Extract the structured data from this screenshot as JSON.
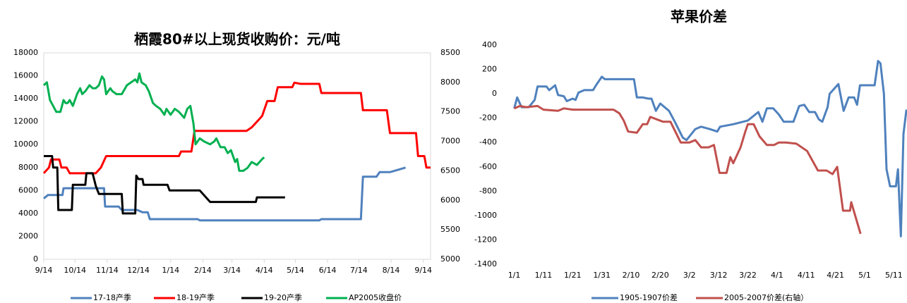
{
  "chart_data": [
    {
      "type": "line",
      "title": "栖霞80#以上现货收购价：元/吨",
      "xlim": [
        0,
        372
      ],
      "xticks": [
        {
          "value": 0,
          "label": "9/14"
        },
        {
          "value": 30,
          "label": "10/14"
        },
        {
          "value": 61,
          "label": "11/14"
        },
        {
          "value": 91,
          "label": "12/14"
        },
        {
          "value": 122,
          "label": "1/14"
        },
        {
          "value": 153,
          "label": "2/14"
        },
        {
          "value": 181,
          "label": "3/14"
        },
        {
          "value": 212,
          "label": "4/14"
        },
        {
          "value": 242,
          "label": "5/14"
        },
        {
          "value": 273,
          "label": "6/14"
        },
        {
          "value": 303,
          "label": "7/14"
        },
        {
          "value": 334,
          "label": "8/14"
        },
        {
          "value": 365,
          "label": "9/14"
        }
      ],
      "ylim": [
        0,
        18000
      ],
      "yticks": [
        0,
        2000,
        4000,
        6000,
        8000,
        10000,
        12000,
        14000,
        16000,
        18000
      ],
      "y2lim": [
        5000,
        8500
      ],
      "y2ticks": [
        5000,
        5500,
        6000,
        6500,
        7000,
        7500,
        8000,
        8500
      ],
      "grid": false,
      "series": [
        {
          "name": "17-18产季",
          "color": "#4f81bd",
          "axis": "y",
          "x": [
            0,
            4,
            18,
            19,
            58,
            59,
            72,
            75,
            90,
            95,
            100,
            102,
            148,
            150,
            265,
            267,
            305,
            307,
            320,
            323,
            333,
            348
          ],
          "values": [
            5300,
            5600,
            5600,
            6200,
            6200,
            4600,
            4600,
            4300,
            4300,
            4100,
            4100,
            3500,
            3500,
            3400,
            3400,
            3500,
            3500,
            7200,
            7200,
            7600,
            7600,
            8000
          ]
        },
        {
          "name": "18-19产季",
          "color": "#ff0000",
          "axis": "y",
          "x": [
            0,
            5,
            7,
            15,
            17,
            22,
            25,
            50,
            55,
            60,
            130,
            132,
            142,
            145,
            195,
            200,
            205,
            210,
            215,
            222,
            225,
            239,
            241,
            247,
            265,
            267,
            305,
            307,
            330,
            333,
            358,
            360,
            366,
            368,
            372
          ],
          "values": [
            7500,
            8000,
            8700,
            8700,
            8000,
            8000,
            7500,
            7500,
            8000,
            9000,
            9000,
            9400,
            9400,
            11200,
            11200,
            11500,
            12000,
            12500,
            13800,
            13800,
            15000,
            15000,
            15400,
            15300,
            15300,
            14500,
            14500,
            13000,
            13000,
            11000,
            11000,
            9000,
            9000,
            8000,
            8000
          ]
        },
        {
          "name": "19-20产季",
          "color": "#000000",
          "axis": "y",
          "x": [
            0,
            8,
            9,
            13,
            14,
            27,
            28,
            40,
            41,
            47,
            50,
            53,
            75,
            76,
            88,
            89,
            91,
            95,
            96,
            119,
            121,
            150,
            160,
            204,
            205,
            232
          ],
          "values": [
            9000,
            9000,
            8000,
            8000,
            4300,
            4300,
            6500,
            6500,
            7500,
            7500,
            6400,
            5700,
            5700,
            4000,
            4000,
            7300,
            7000,
            7000,
            6500,
            6500,
            6000,
            6000,
            5000,
            5000,
            5400,
            5400
          ]
        },
        {
          "name": "AP2005收盘价",
          "color": "#00b050",
          "axis": "y2",
          "x": [
            0,
            3,
            6,
            9,
            12,
            16,
            19,
            21,
            23,
            25,
            28,
            30,
            32,
            35,
            37,
            40,
            44,
            47,
            50,
            53,
            56,
            58,
            60,
            62,
            64,
            66,
            70,
            75,
            80,
            84,
            88,
            90,
            92,
            94,
            98,
            101,
            105,
            108,
            112,
            116,
            118,
            122,
            126,
            130,
            135,
            138,
            141,
            144,
            146,
            150,
            154,
            160,
            164,
            166,
            170,
            174,
            177,
            180,
            184,
            186,
            188,
            192,
            196,
            200,
            205,
            210,
            212
          ],
          "values": [
            7950,
            8000,
            7700,
            7600,
            7500,
            7500,
            7700,
            7650,
            7650,
            7700,
            7600,
            7700,
            7800,
            7900,
            7800,
            7850,
            7950,
            7900,
            7900,
            7950,
            8100,
            8050,
            7800,
            7850,
            7900,
            7850,
            7800,
            7800,
            7950,
            8000,
            8050,
            8000,
            8150,
            8000,
            7950,
            7850,
            7650,
            7600,
            7550,
            7450,
            7550,
            7450,
            7550,
            7500,
            7400,
            7550,
            7600,
            7300,
            6950,
            7050,
            7000,
            6950,
            7000,
            7050,
            6900,
            6900,
            6800,
            6850,
            6650,
            6700,
            6500,
            6500,
            6550,
            6650,
            6600,
            6700,
            6730
          ]
        }
      ]
    },
    {
      "type": "line",
      "title": "苹果价差",
      "xlim": [
        -4,
        134.5
      ],
      "xticks": [
        {
          "value": 0,
          "label": "1/1"
        },
        {
          "value": 10,
          "label": "1/11"
        },
        {
          "value": 20,
          "label": "1/21"
        },
        {
          "value": 30,
          "label": "1/31"
        },
        {
          "value": 40,
          "label": "2/10"
        },
        {
          "value": 50,
          "label": "2/20"
        },
        {
          "value": 60,
          "label": "3/2"
        },
        {
          "value": 70,
          "label": "3/12"
        },
        {
          "value": 80,
          "label": "3/22"
        },
        {
          "value": 90,
          "label": "4/1"
        },
        {
          "value": 100,
          "label": "4/11"
        },
        {
          "value": 110,
          "label": "4/21"
        },
        {
          "value": 120,
          "label": "5/1"
        },
        {
          "value": 130,
          "label": "5/11"
        }
      ],
      "ylim": [
        -1400,
        400
      ],
      "yticks": [
        -1400,
        -1200,
        -1000,
        -800,
        -600,
        -400,
        -200,
        0,
        200,
        400
      ],
      "grid": false,
      "series": [
        {
          "name": "1905-1907价差",
          "color": "#4f81bd",
          "axis": "y",
          "x": [
            0,
            1,
            2.5,
            5,
            7,
            8,
            11,
            12,
            14,
            15,
            17,
            18,
            20,
            21,
            22,
            24,
            27,
            28,
            30,
            31,
            41,
            42,
            44,
            46,
            47,
            48.5,
            50,
            53,
            55,
            57.7,
            59,
            62,
            64,
            67,
            69.5,
            70.5,
            75,
            80,
            83.6,
            85,
            86.5,
            88.7,
            90.6,
            92.3,
            95.6,
            97.6,
            99.3,
            101,
            103,
            104.3,
            105.5,
            107.3,
            108,
            111,
            112.8,
            114.5,
            116.4,
            117.4,
            118.4,
            123.4,
            124.6,
            125.4,
            126.6,
            127.5,
            128.7,
            130.7,
            131.4,
            132.4,
            133.3,
            134.3
          ],
          "values": [
            -120,
            -30,
            -110,
            -110,
            -50,
            60,
            60,
            30,
            70,
            -10,
            -20,
            -60,
            -40,
            -50,
            10,
            30,
            30,
            70,
            140,
            120,
            120,
            -30,
            -30,
            -40,
            -40,
            -140,
            -80,
            -140,
            -230,
            -360,
            -380,
            -290,
            -270,
            -290,
            -310,
            -270,
            -250,
            -220,
            -150,
            -230,
            -120,
            -120,
            -170,
            -230,
            -230,
            -100,
            -90,
            -150,
            -150,
            -210,
            -230,
            -110,
            0,
            80,
            -140,
            -30,
            -30,
            -90,
            70,
            70,
            270,
            250,
            0,
            -620,
            -760,
            -760,
            -620,
            -1170,
            -330,
            -130
          ]
        },
        {
          "name": "2005-2007价差(右轴）",
          "color": "#c0504d",
          "axis": "y",
          "x": [
            0,
            2,
            4,
            8,
            10,
            15,
            17,
            20,
            25,
            34,
            36,
            37.5,
            39,
            42,
            44,
            45.5,
            46.6,
            51,
            53.5,
            57,
            60,
            62,
            64,
            66.5,
            68.4,
            70.3,
            72.7,
            74,
            75,
            77.5,
            79,
            80,
            82,
            84,
            86.5,
            89,
            90.6,
            93,
            96.6,
            100.3,
            104,
            107,
            109,
            110.6,
            112.6,
            115,
            115.4,
            118.6
          ],
          "values": [
            -120,
            -100,
            -110,
            -100,
            -130,
            -140,
            -120,
            -130,
            -130,
            -130,
            -160,
            -220,
            -310,
            -320,
            -250,
            -250,
            -190,
            -230,
            -230,
            -400,
            -400,
            -380,
            -440,
            -440,
            -420,
            -650,
            -650,
            -520,
            -570,
            -440,
            -320,
            -250,
            -250,
            -350,
            -420,
            -420,
            -400,
            -400,
            -410,
            -470,
            -630,
            -630,
            -660,
            -600,
            -960,
            -960,
            -890,
            -1150
          ]
        }
      ]
    }
  ]
}
